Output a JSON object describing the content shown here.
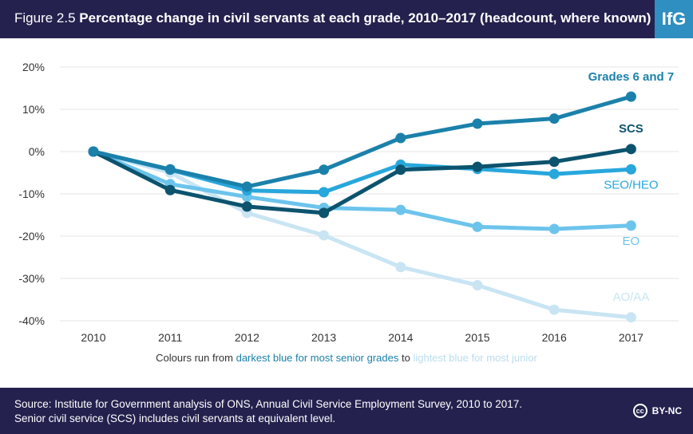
{
  "header": {
    "figure_label": "Figure 2.5",
    "title": "Percentage change in civil servants at each grade, 2010–2017 (headcount, where known)",
    "logo": "IfG"
  },
  "chart_data": {
    "type": "line",
    "x": [
      2010,
      2011,
      2012,
      2013,
      2014,
      2015,
      2016,
      2017
    ],
    "ylim": [
      -40,
      20
    ],
    "yticks": [
      "20%",
      "10%",
      "0%",
      "-10%",
      "-20%",
      "-30%",
      "-40%"
    ],
    "ytick_values": [
      20,
      10,
      0,
      -10,
      -20,
      -30,
      -40
    ],
    "grid": true,
    "series": [
      {
        "name": "AO/AA",
        "color": "#c9e5f3",
        "values": [
          0,
          -5,
          -14.5,
          -19.8,
          -27.3,
          -31.6,
          -37.4,
          -39.2
        ]
      },
      {
        "name": "EO",
        "color": "#6cc4ec",
        "values": [
          0,
          -7.7,
          -10.7,
          -13.3,
          -13.8,
          -17.8,
          -18.3,
          -17.5
        ]
      },
      {
        "name": "SEO/HEO",
        "color": "#27a7dc",
        "values": [
          0,
          -4.3,
          -9.2,
          -9.6,
          -3.1,
          -4.1,
          -5.3,
          -4.2
        ]
      },
      {
        "name": "SCS",
        "color": "#0c536e",
        "values": [
          0,
          -9.1,
          -13,
          -14.5,
          -4.3,
          -3.6,
          -2.4,
          0.6
        ]
      },
      {
        "name": "Grades 6 and 7",
        "color": "#1b81ab",
        "values": [
          0,
          -4.2,
          -8.3,
          -4.3,
          3.2,
          6.6,
          7.8,
          13
        ]
      }
    ]
  },
  "note": {
    "prefix": "Colours run from ",
    "dark": "darkest blue for most senior grades",
    "middle": " to ",
    "light": "lightest blue for most junior",
    "dark_color": "#1b81ab",
    "light_color": "#b9ddf0"
  },
  "footer": {
    "source": "Source: Institute for Government analysis of ONS, Annual Civil Service Employment Survey, 2010 to 2017.",
    "scs_note": "Senior civil service (SCS) includes civil servants at equivalent level.",
    "license_icon": "cc",
    "license": "BY-NC"
  }
}
